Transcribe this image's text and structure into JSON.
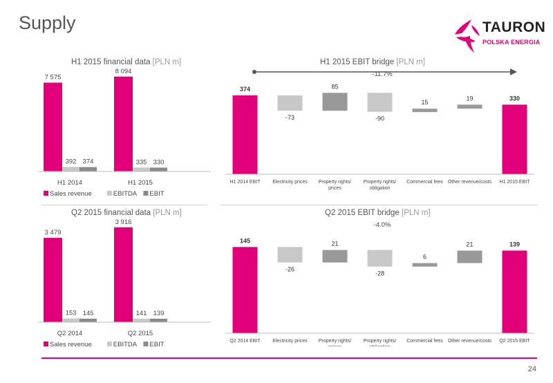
{
  "page": {
    "title": "Supply",
    "page_number": "24"
  },
  "logo": {
    "name": "TAURON",
    "subtitle": "POLSKA ENERGIA"
  },
  "colors": {
    "accent": "#e2007a",
    "ebitda": "#c8c8c8",
    "ebit": "#8a8a8a",
    "bridge_light": "#c8c8c8",
    "bridge_dark": "#999999"
  },
  "panels": {
    "h1_financial": {
      "title": "H1 2015 financial data",
      "unit": "[PLN m]"
    },
    "h1_bridge": {
      "title": "H1 2015 EBIT bridge",
      "unit": "[PLN m]"
    },
    "q2_financial": {
      "title": "Q2 2015 financial data",
      "unit": "[PLN m]"
    },
    "q2_bridge": {
      "title": "Q2 2015 EBIT bridge",
      "unit": "[PLN m]"
    }
  },
  "chart_data": [
    {
      "type": "bar",
      "title": "H1 2015 financial data [PLN m]",
      "categories": [
        "H1 2014",
        "H1 2015"
      ],
      "series": [
        {
          "name": "Sales revenue",
          "values": [
            7575,
            8094
          ],
          "labels": [
            "7 575",
            "8 094"
          ],
          "color": "#e2007a"
        },
        {
          "name": "EBITDA",
          "values": [
            392,
            335
          ],
          "labels": [
            "392",
            "335"
          ],
          "color": "#c8c8c8"
        },
        {
          "name": "EBIT",
          "values": [
            374,
            330
          ],
          "labels": [
            "374",
            "330"
          ],
          "color": "#8a8a8a"
        }
      ],
      "legend": "bottom-left"
    },
    {
      "type": "bar",
      "subtype": "waterfall",
      "title": "H1 2015 EBIT bridge [PLN m]",
      "categories": [
        "H1 2014 EBIT",
        "Electricity prices",
        "Property rights/ prices",
        "Property rights/ obligation",
        "Commercial fees",
        "Other revenue/costs",
        "H1 2015 EBIT"
      ],
      "values": [
        374,
        -73,
        85,
        -90,
        15,
        19,
        330
      ],
      "labels": [
        "374",
        "-73",
        "85",
        "-90",
        "15",
        "19",
        "330"
      ],
      "kinds": [
        "total",
        "neg",
        "pos",
        "neg",
        "pos",
        "pos",
        "total"
      ],
      "change_label": "-11.7%"
    },
    {
      "type": "bar",
      "title": "Q2 2015 financial data [PLN m]",
      "categories": [
        "Q2 2014",
        "Q2 2015"
      ],
      "series": [
        {
          "name": "Sales revenue",
          "values": [
            3479,
            3916
          ],
          "labels": [
            "3 479",
            "3 916"
          ],
          "color": "#e2007a"
        },
        {
          "name": "EBITDA",
          "values": [
            153,
            141
          ],
          "labels": [
            "153",
            "141"
          ],
          "color": "#c8c8c8"
        },
        {
          "name": "EBIT",
          "values": [
            145,
            139
          ],
          "labels": [
            "145",
            "139"
          ],
          "color": "#8a8a8a"
        }
      ],
      "legend": "bottom-left"
    },
    {
      "type": "bar",
      "subtype": "waterfall",
      "title": "Q2 2015 EBIT bridge [PLN m]",
      "categories": [
        "Q2 2014 EBIT",
        "Electricity prices",
        "Property rights/ prices",
        "Property rights/ obligation",
        "Commercial fees",
        "Other revenue/costs",
        "Q2 2015 EBIT"
      ],
      "values": [
        145,
        -26,
        21,
        -28,
        6,
        21,
        139
      ],
      "labels": [
        "145",
        "-26",
        "21",
        "-28",
        "6",
        "21",
        "139"
      ],
      "kinds": [
        "total",
        "neg",
        "pos",
        "neg",
        "pos",
        "pos",
        "total"
      ],
      "change_label": "-4.0%"
    }
  ]
}
